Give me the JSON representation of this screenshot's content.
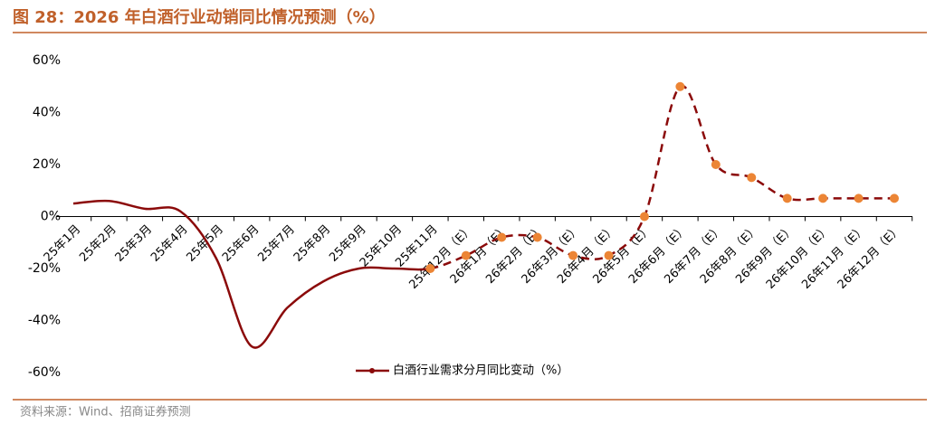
{
  "chart_data": {
    "type": "line",
    "title": "图 28：2026 年白酒行业动销同比情况预测（%）",
    "source": "资料来源：Wind、招商证券预测",
    "categories": [
      "25年1月",
      "25年2月",
      "25年3月",
      "25年4月",
      "25年5月",
      "25年6月",
      "25年7月",
      "25年8月",
      "25年9月",
      "25年10月",
      "25年11月",
      "25年12月（E）",
      "26年1月（E）",
      "26年2月（E）",
      "26年3月（E）",
      "26年4月（E）",
      "26年5月（E）",
      "26年6月（E）",
      "26年7月（E）",
      "26年8月（E）",
      "26年9月（E）",
      "26年10月（E）",
      "26年11月（E）",
      "26年12月（E）"
    ],
    "series": [
      {
        "name": "白酒行业需求分月同比变动（%）",
        "color": "#8b0a0a",
        "marker_color": "#ec8535",
        "values": [
          5,
          6,
          3,
          2,
          -16,
          -50,
          -35,
          -25,
          -20,
          -20,
          -20,
          -15,
          -8,
          -8,
          -15,
          -15,
          0,
          50,
          20,
          15,
          7,
          7,
          7,
          7
        ]
      }
    ],
    "ylim": [
      -60,
      60
    ],
    "yticks": [
      {
        "value": -60,
        "label": "-60%"
      },
      {
        "value": -40,
        "label": "-40%"
      },
      {
        "value": -20,
        "label": "-20%"
      },
      {
        "value": 0,
        "label": "0%"
      },
      {
        "value": 20,
        "label": "20%"
      },
      {
        "value": 40,
        "label": "40%"
      },
      {
        "value": 60,
        "label": "60%"
      }
    ],
    "grid": false,
    "legend": "bottom"
  }
}
